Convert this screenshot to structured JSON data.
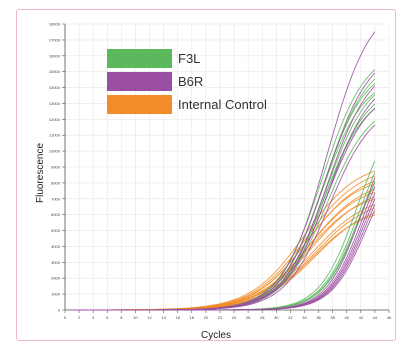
{
  "chart_data": {
    "type": "line",
    "xlabel": "Cycles",
    "ylabel": "Fluorescence",
    "xlim": [
      0,
      46
    ],
    "ylim": [
      0,
      18000
    ],
    "x_ticks": [
      0,
      2,
      4,
      6,
      8,
      10,
      12,
      14,
      16,
      18,
      20,
      22,
      24,
      26,
      28,
      30,
      32,
      34,
      36,
      38,
      40,
      42,
      44,
      46
    ],
    "y_ticks": [
      0,
      1000,
      2000,
      3000,
      4000,
      5000,
      6000,
      7000,
      8000,
      9000,
      10000,
      11000,
      12000,
      13000,
      14000,
      15000,
      16000,
      17000,
      18000
    ],
    "grid": true,
    "x_start": 1,
    "x_end": 44,
    "legend": {
      "placement": "top-left",
      "items": [
        {
          "label": "F3L",
          "color": "#5cb85c"
        },
        {
          "label": "B6R",
          "color": "#9b4fa3"
        },
        {
          "label": "Internal Control",
          "color": "#f28c28"
        }
      ]
    },
    "series": [
      {
        "group": "F3L",
        "color": "#5cb85c",
        "plateau": 16500,
        "midpoint": 36.5,
        "slope": 0.32
      },
      {
        "group": "F3L",
        "color": "#5cb85c",
        "plateau": 16000,
        "midpoint": 36.8,
        "slope": 0.32
      },
      {
        "group": "F3L",
        "color": "#5cb85c",
        "plateau": 15500,
        "midpoint": 36.6,
        "slope": 0.33
      },
      {
        "group": "F3L",
        "color": "#5cb85c",
        "plateau": 15000,
        "midpoint": 37.0,
        "slope": 0.32
      },
      {
        "group": "F3L",
        "color": "#5cb85c",
        "plateau": 14800,
        "midpoint": 36.4,
        "slope": 0.33
      },
      {
        "group": "F3L",
        "color": "#5cb85c",
        "plateau": 14300,
        "midpoint": 36.9,
        "slope": 0.32
      },
      {
        "group": "F3L",
        "color": "#5cb85c",
        "plateau": 13800,
        "midpoint": 36.7,
        "slope": 0.33
      },
      {
        "group": "F3L",
        "color": "#5cb85c",
        "plateau": 13200,
        "midpoint": 37.1,
        "slope": 0.32
      },
      {
        "group": "F3L",
        "color": "#5cb85c",
        "plateau": 13000,
        "midpoint": 41.5,
        "slope": 0.38
      },
      {
        "group": "F3L",
        "color": "#5cb85c",
        "plateau": 12400,
        "midpoint": 41.8,
        "slope": 0.38
      },
      {
        "group": "F3L",
        "color": "#5cb85c",
        "plateau": 11800,
        "midpoint": 42.0,
        "slope": 0.38
      },
      {
        "group": "F3L",
        "color": "#5cb85c",
        "plateau": 11200,
        "midpoint": 41.6,
        "slope": 0.39
      },
      {
        "group": "B6R",
        "color": "#9b4fa3",
        "plateau": 19500,
        "midpoint": 37.2,
        "slope": 0.32
      },
      {
        "group": "B6R",
        "color": "#9b4fa3",
        "plateau": 16500,
        "midpoint": 37.0,
        "slope": 0.32
      },
      {
        "group": "B6R",
        "color": "#9b4fa3",
        "plateau": 15700,
        "midpoint": 37.2,
        "slope": 0.32
      },
      {
        "group": "B6R",
        "color": "#9b4fa3",
        "plateau": 14900,
        "midpoint": 37.4,
        "slope": 0.32
      },
      {
        "group": "B6R",
        "color": "#9b4fa3",
        "plateau": 14100,
        "midpoint": 37.1,
        "slope": 0.32
      },
      {
        "group": "B6R",
        "color": "#9b4fa3",
        "plateau": 13100,
        "midpoint": 37.5,
        "slope": 0.32
      },
      {
        "group": "B6R",
        "color": "#9b4fa3",
        "plateau": 12400,
        "midpoint": 42.2,
        "slope": 0.4
      },
      {
        "group": "B6R",
        "color": "#9b4fa3",
        "plateau": 11900,
        "midpoint": 42.4,
        "slope": 0.4
      },
      {
        "group": "B6R",
        "color": "#9b4fa3",
        "plateau": 11400,
        "midpoint": 42.5,
        "slope": 0.4
      },
      {
        "group": "B6R",
        "color": "#9b4fa3",
        "plateau": 11000,
        "midpoint": 42.6,
        "slope": 0.4
      },
      {
        "group": "B6R",
        "color": "#9b4fa3",
        "plateau": 10600,
        "midpoint": 42.7,
        "slope": 0.4
      },
      {
        "group": "B6R",
        "color": "#9b4fa3",
        "plateau": 10200,
        "midpoint": 42.8,
        "slope": 0.4
      },
      {
        "group": "Internal Control",
        "color": "#f28c28",
        "plateau": 9400,
        "midpoint": 34.0,
        "slope": 0.26
      },
      {
        "group": "Internal Control",
        "color": "#f28c28",
        "plateau": 9100,
        "midpoint": 34.3,
        "slope": 0.26
      },
      {
        "group": "Internal Control",
        "color": "#f28c28",
        "plateau": 8800,
        "midpoint": 34.5,
        "slope": 0.26
      },
      {
        "group": "Internal Control",
        "color": "#f28c28",
        "plateau": 8500,
        "midpoint": 34.2,
        "slope": 0.27
      },
      {
        "group": "Internal Control",
        "color": "#f28c28",
        "plateau": 8300,
        "midpoint": 34.8,
        "slope": 0.26
      },
      {
        "group": "Internal Control",
        "color": "#f28c28",
        "plateau": 8000,
        "midpoint": 34.6,
        "slope": 0.27
      },
      {
        "group": "Internal Control",
        "color": "#f28c28",
        "plateau": 7800,
        "midpoint": 35.0,
        "slope": 0.26
      },
      {
        "group": "Internal Control",
        "color": "#f28c28",
        "plateau": 7500,
        "midpoint": 34.4,
        "slope": 0.27
      },
      {
        "group": "Internal Control",
        "color": "#f28c28",
        "plateau": 7300,
        "midpoint": 35.2,
        "slope": 0.26
      },
      {
        "group": "Internal Control",
        "color": "#f28c28",
        "plateau": 7100,
        "midpoint": 35.4,
        "slope": 0.26
      },
      {
        "group": "Internal Control",
        "color": "#f28c28",
        "plateau": 6800,
        "midpoint": 35.6,
        "slope": 0.26
      },
      {
        "group": "Internal Control",
        "color": "#f28c28",
        "plateau": 6500,
        "midpoint": 35.0,
        "slope": 0.27
      }
    ]
  }
}
